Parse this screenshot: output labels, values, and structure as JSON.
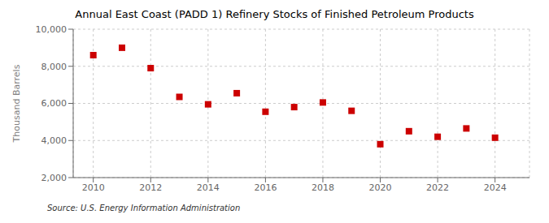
{
  "chart_data": {
    "type": "scatter",
    "title": "Annual East Coast (PADD 1) Refinery Stocks of Finished Petroleum Products",
    "ylabel": "Thousand Barrels",
    "annotation": "Source: U.S. Energy Information Administration",
    "x": [
      2010,
      2011,
      2012,
      2013,
      2014,
      2015,
      2016,
      2017,
      2018,
      2019,
      2020,
      2021,
      2022,
      2023,
      2024
    ],
    "values": [
      8600,
      9000,
      7900,
      6350,
      5950,
      6550,
      5550,
      5800,
      6050,
      5600,
      3800,
      4500,
      4200,
      4650,
      4150
    ],
    "color": "#cc0000",
    "marker": "square",
    "xlim": [
      2009.3,
      2025.2
    ],
    "xticks": [
      2010,
      2012,
      2014,
      2016,
      2018,
      2020,
      2022,
      2024
    ],
    "ylim": [
      2000,
      10000
    ],
    "yticks": [
      {
        "value": 2000,
        "label": "2,000"
      },
      {
        "value": 4000,
        "label": "4,000"
      },
      {
        "value": 6000,
        "label": "6,000"
      },
      {
        "value": 8000,
        "label": "8,000"
      },
      {
        "value": 10000,
        "label": "10,000"
      }
    ],
    "grid": true
  }
}
